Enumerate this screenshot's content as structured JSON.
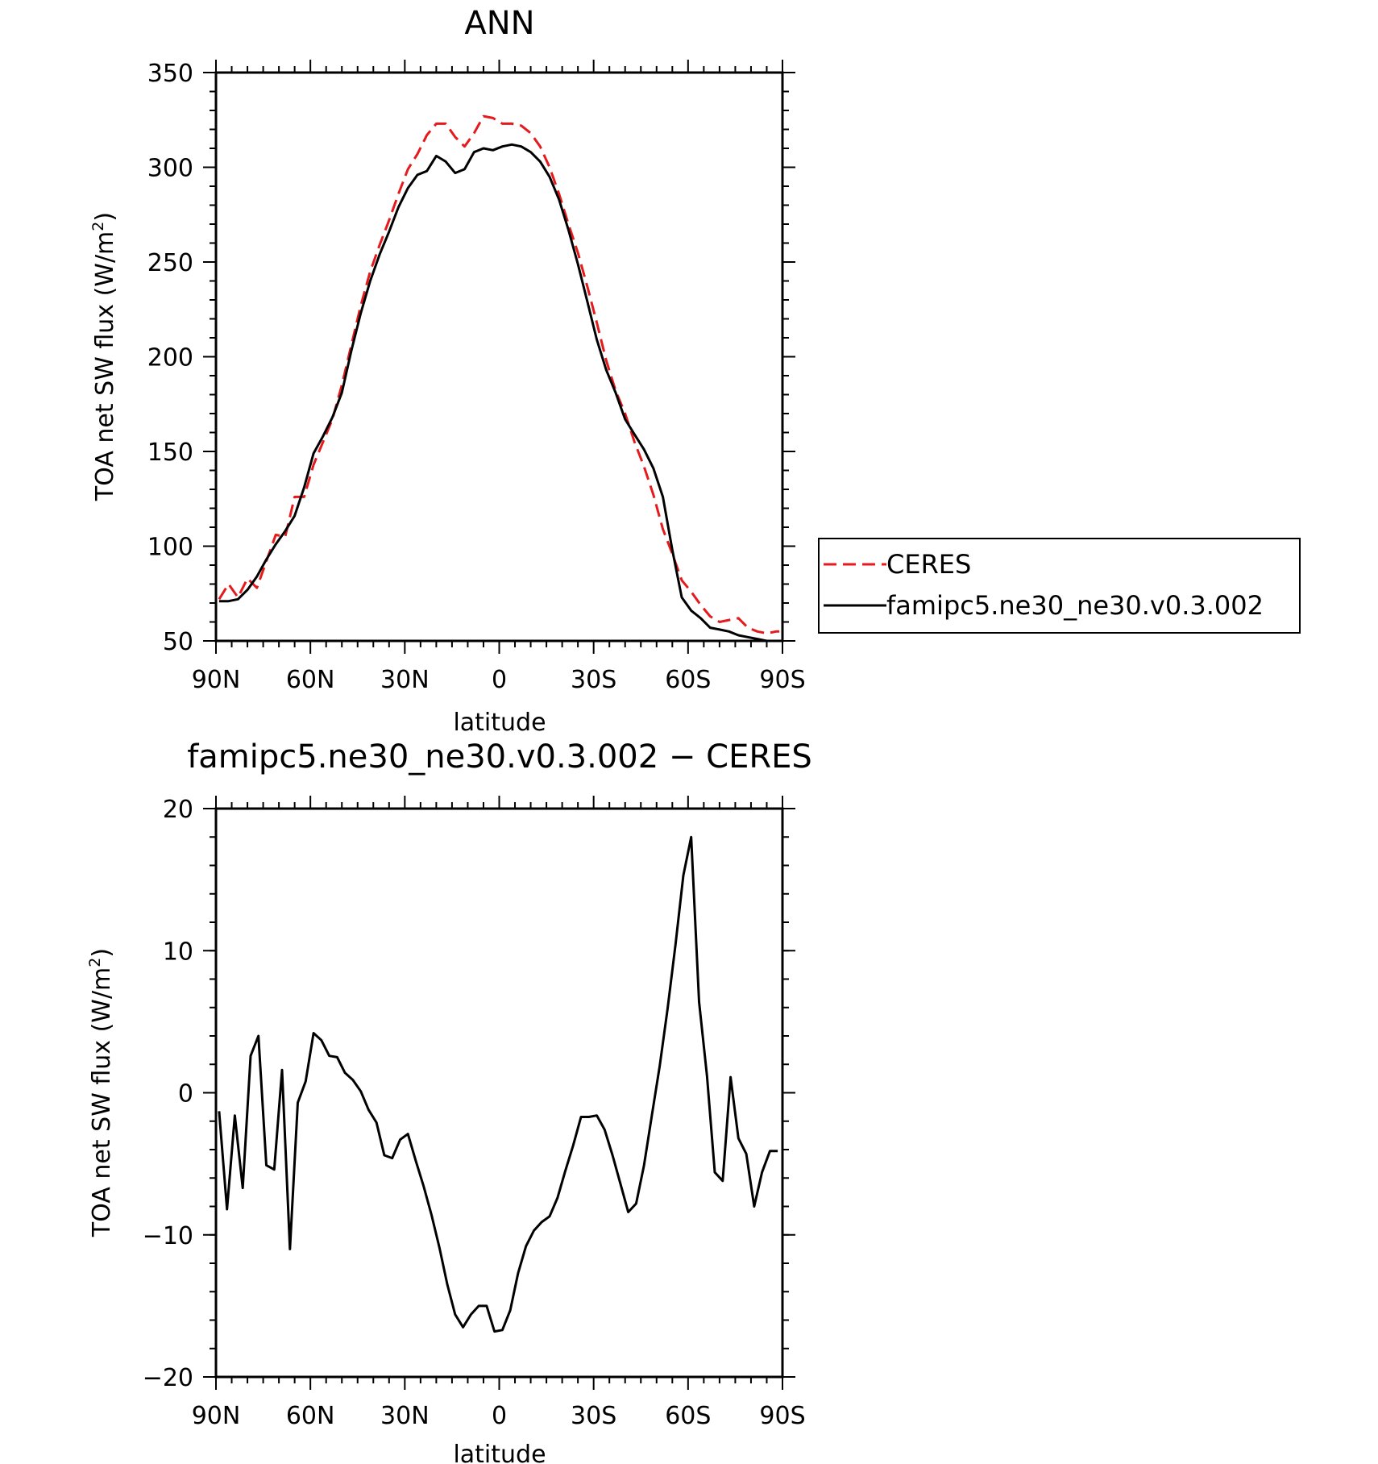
{
  "chart_data": [
    {
      "type": "line",
      "title": "ANN",
      "xlabel": "latitude",
      "ylabel": "TOA net SW flux (W/m²)",
      "ylabel_main": "TOA net SW flux (W/m",
      "ylabel_sup": "2",
      "ylabel_close": ")",
      "xlim": [
        90,
        -90
      ],
      "ylim": [
        50,
        350
      ],
      "x_ticks": [
        90,
        60,
        30,
        0,
        -30,
        -60,
        -90
      ],
      "x_tick_labels": [
        "90N",
        "60N",
        "30N",
        "0",
        "30S",
        "60S",
        "90S"
      ],
      "y_ticks": [
        50,
        100,
        150,
        200,
        250,
        300,
        350
      ],
      "y_tick_labels": [
        "50",
        "100",
        "150",
        "200",
        "250",
        "300",
        "350"
      ],
      "grid": false,
      "legend": "right",
      "series": [
        {
          "name": "CERES",
          "color": "#e41a1c",
          "dash": true,
          "x": [
            89,
            86,
            83,
            80,
            77,
            74,
            71,
            68,
            65,
            62,
            59,
            56,
            53,
            50,
            47,
            44,
            41,
            38,
            35,
            32,
            29,
            26,
            23,
            20,
            17,
            14,
            11,
            8,
            5,
            2,
            -1,
            -4,
            -7,
            -10,
            -13,
            -16,
            -19,
            -22,
            -25,
            -28,
            -31,
            -34,
            -37,
            -40,
            -43,
            -46,
            -49,
            -52,
            -55,
            -58,
            -61,
            -64,
            -67,
            -70,
            -73,
            -76,
            -79,
            -82,
            -85,
            -88,
            -89
          ],
          "y": [
            72,
            80,
            73,
            83,
            78,
            92,
            106,
            105,
            126,
            126,
            143,
            155,
            167,
            185,
            206,
            227,
            245,
            259,
            272,
            286,
            299,
            307,
            317,
            323,
            323,
            316,
            311,
            318,
            327,
            326,
            323,
            323,
            322,
            318,
            311,
            300,
            286,
            270,
            255,
            237,
            218,
            198,
            182,
            170,
            155,
            142,
            127,
            109,
            96,
            82,
            76,
            69,
            63,
            60,
            61,
            62,
            57,
            55,
            54,
            55,
            55
          ]
        },
        {
          "name": "famipc5.ne30_ne30.v0.3.002",
          "color": "#000000",
          "dash": false,
          "x": [
            89,
            86,
            83,
            80,
            77,
            74,
            71,
            68,
            65,
            62,
            59,
            56,
            53,
            50,
            47,
            44,
            41,
            38,
            35,
            32,
            29,
            26,
            23,
            20,
            17,
            14,
            11,
            8,
            5,
            2,
            -1,
            -4,
            -7,
            -10,
            -13,
            -16,
            -19,
            -22,
            -25,
            -28,
            -31,
            -34,
            -37,
            -40,
            -43,
            -46,
            -49,
            -52,
            -55,
            -58,
            -61,
            -64,
            -67,
            -70,
            -73,
            -76,
            -79,
            -82,
            -85,
            -88,
            -89
          ],
          "y": [
            71,
            71,
            72,
            77,
            84,
            93,
            101,
            108,
            116,
            131,
            149,
            158,
            168,
            181,
            203,
            223,
            240,
            254,
            266,
            279,
            289,
            296,
            298,
            306,
            303,
            297,
            299,
            308,
            310,
            309,
            311,
            312,
            311,
            308,
            303,
            295,
            283,
            267,
            249,
            229,
            209,
            193,
            181,
            167,
            159,
            151,
            141,
            126,
            98,
            73,
            66,
            62,
            57,
            56,
            55,
            53,
            52,
            51,
            50,
            50,
            50
          ]
        }
      ]
    },
    {
      "type": "line",
      "title": "famipc5.ne30_ne30.v0.3.002 − CERES",
      "xlabel": "latitude",
      "ylabel": "TOA net SW flux (W/m²)",
      "ylabel_main": "TOA net SW flux (W/m",
      "ylabel_sup": "2",
      "ylabel_close": ")",
      "xlim": [
        90,
        -90
      ],
      "ylim": [
        -20,
        20
      ],
      "x_ticks": [
        90,
        60,
        30,
        0,
        -30,
        -60,
        -90
      ],
      "x_tick_labels": [
        "90N",
        "60N",
        "30N",
        "0",
        "30S",
        "60S",
        "90S"
      ],
      "y_ticks": [
        -20,
        -10,
        0,
        10,
        20
      ],
      "y_tick_labels": [
        "−20",
        "−10",
        "0",
        "10",
        "20"
      ],
      "grid": false,
      "series": [
        {
          "color": "#000000",
          "dash": false,
          "x": [
            89,
            86.5,
            84,
            81.5,
            79,
            76.5,
            74,
            71.5,
            69,
            66.5,
            64,
            61.5,
            59,
            56.5,
            54,
            51.5,
            49,
            46.5,
            44,
            41.5,
            39,
            36.5,
            34,
            31.5,
            29,
            26.5,
            24,
            21.5,
            19,
            16.5,
            14,
            11.5,
            9,
            6.5,
            4,
            1.5,
            -1,
            -3.5,
            -6,
            -8.5,
            -11,
            -13.5,
            -16,
            -18.5,
            -21,
            -23.5,
            -26,
            -28.5,
            -31,
            -33.5,
            -36,
            -38.5,
            -41,
            -43.5,
            -46,
            -48.5,
            -51,
            -53.5,
            -56,
            -58.5,
            -61,
            -63.5,
            -66,
            -68.5,
            -71,
            -73.5,
            -76,
            -78.5,
            -81,
            -83.5,
            -86,
            -88.5
          ],
          "y": [
            -1.3,
            -8.2,
            -1.6,
            -6.7,
            2.6,
            4.0,
            -5.1,
            -5.4,
            1.6,
            -11.0,
            -0.7,
            0.8,
            4.2,
            3.7,
            2.6,
            2.5,
            1.4,
            0.9,
            0.1,
            -1.2,
            -2.1,
            -4.4,
            -4.6,
            -3.3,
            -2.9,
            -4.8,
            -6.6,
            -8.6,
            -10.9,
            -13.5,
            -15.6,
            -16.5,
            -15.6,
            -15.0,
            -15.0,
            -16.8,
            -16.7,
            -15.3,
            -12.7,
            -10.8,
            -9.7,
            -9.1,
            -8.7,
            -7.4,
            -5.5,
            -3.7,
            -1.7,
            -1.7,
            -1.6,
            -2.6,
            -4.4,
            -6.4,
            -8.4,
            -7.8,
            -5.1,
            -1.6,
            1.9,
            5.9,
            10.4,
            15.3,
            18.0,
            6.4,
            1.2,
            -5.6,
            -6.2,
            1.1,
            -3.2,
            -4.3,
            -8.0,
            -5.6,
            -4.1,
            -4.1
          ]
        }
      ]
    }
  ]
}
